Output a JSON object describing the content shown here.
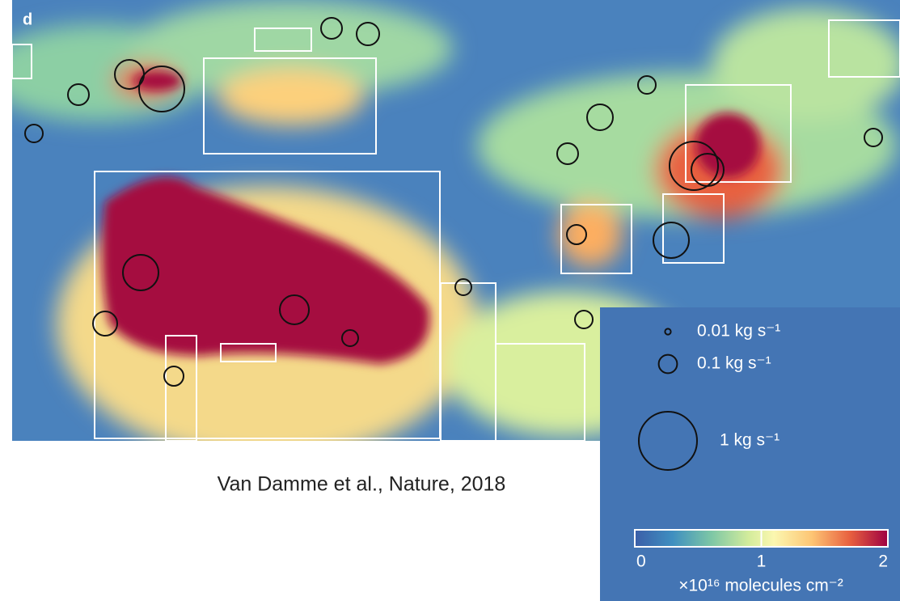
{
  "map": {
    "panel_label": "d"
  },
  "legend": {
    "items": [
      {
        "value": 0.01,
        "label": "0.01 kg s⁻¹"
      },
      {
        "value": 0.1,
        "label": "0.1 kg s⁻¹"
      },
      {
        "value": 1,
        "label": "1 kg s⁻¹"
      }
    ]
  },
  "colorbar": {
    "lim": [
      0,
      2
    ],
    "ticks": [
      0,
      1,
      2
    ],
    "label": "×10¹⁶ molecules cm⁻²"
  },
  "caption": "Van Damme et al., Nature, 2018"
}
